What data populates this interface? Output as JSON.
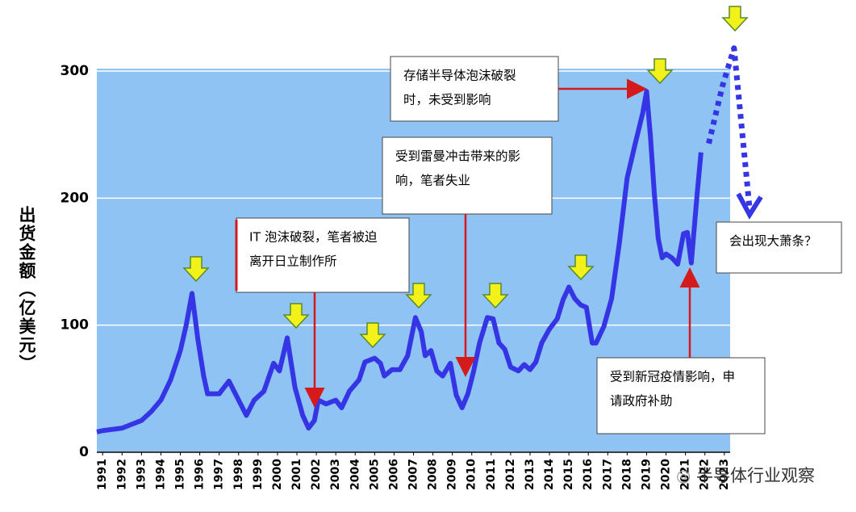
{
  "chart_data": {
    "type": "line",
    "ylabel": "出货金额（亿美元）",
    "xlim": [
      1990.7,
      2023.3
    ],
    "ylim": [
      0,
      300
    ],
    "xticks": [
      1991,
      1992,
      1993,
      1994,
      1995,
      1996,
      1997,
      1998,
      1999,
      2000,
      2001,
      2002,
      2003,
      2004,
      2005,
      2006,
      2007,
      2008,
      2009,
      2010,
      2011,
      2012,
      2013,
      2014,
      2015,
      2016,
      2017,
      2018,
      2019,
      2020,
      2021,
      2022,
      2023
    ],
    "yticks": [
      0,
      100,
      200,
      300
    ],
    "grid": true,
    "series": [
      {
        "color": "#3535e6",
        "x": [
          1990.7,
          1991,
          1992,
          1992.5,
          1993,
          1993.5,
          1994,
          1994.5,
          1995,
          1995.3,
          1995.6,
          1995.9,
          1996.2,
          1996.4,
          1997,
          1997.5,
          1998,
          1998.4,
          1998.8,
          1999.3,
          1999.8,
          2000.1,
          2000.5,
          2000.9,
          2001.3,
          2001.6,
          2001.9,
          2002.1,
          2002.5,
          2003,
          2003.3,
          2003.7,
          2004.2,
          2004.5,
          2005,
          2005.3,
          2005.5,
          2005.9,
          2006.3,
          2006.7,
          2007.1,
          2007.4,
          2007.6,
          2007.9,
          2008.2,
          2008.5,
          2008.9,
          2009.2,
          2009.5,
          2009.8,
          2010.1,
          2010.4,
          2010.8,
          2011.1,
          2011.4,
          2011.7,
          2012,
          2012.4,
          2012.7,
          2013,
          2013.3,
          2013.6,
          2014,
          2014.4,
          2014.7,
          2015,
          2015.3,
          2015.6,
          2015.9,
          2016.2,
          2016.4,
          2016.8,
          2017.2,
          2017.6,
          2018,
          2018.4,
          2018.8,
          2019,
          2019.2,
          2019.4,
          2019.6,
          2019.8,
          2020,
          2020.3,
          2020.6,
          2020.9,
          2021.1,
          2021.3,
          2021.6,
          2021.8
        ],
        "values": [
          16,
          17,
          19,
          22,
          25,
          32,
          41,
          57,
          80,
          100,
          125,
          89,
          60,
          46,
          46,
          56,
          41,
          29,
          41,
          48,
          70,
          64,
          90,
          51,
          29,
          19,
          25,
          41,
          38,
          41,
          35,
          48,
          57,
          71,
          74,
          70,
          60,
          65,
          65,
          76,
          106,
          95,
          76,
          80,
          64,
          60,
          70,
          45,
          35,
          46,
          64,
          86,
          106,
          105,
          86,
          81,
          67,
          64,
          69,
          65,
          71,
          86,
          97,
          105,
          120,
          130,
          121,
          116,
          114,
          86,
          86,
          99,
          121,
          165,
          216,
          242,
          267,
          284,
          248,
          203,
          168,
          153,
          156,
          153,
          148,
          172,
          173,
          149,
          203,
          236
        ]
      },
      {
        "color": "#3535e6",
        "dashed": true,
        "x": [
          2022.2,
          2022.9,
          2023.5,
          2024.3
        ],
        "values": [
          243,
          288,
          318,
          192
        ]
      }
    ],
    "annotations": [
      {
        "lines": [
          "IT 泡沫破裂，笔者被迫",
          "离开日立制作所"
        ]
      },
      {
        "lines": [
          "受到雷曼冲击带来的影",
          "响，笔者失业"
        ]
      },
      {
        "lines": [
          "存储半导体泡沫破裂",
          "时，未受到影响"
        ]
      },
      {
        "lines": [
          "受到新冠疫情影响，申",
          "请政府补助"
        ]
      },
      {
        "lines": [
          "会出现大萧条？"
        ]
      }
    ]
  },
  "watermark": "半导体行业观察"
}
